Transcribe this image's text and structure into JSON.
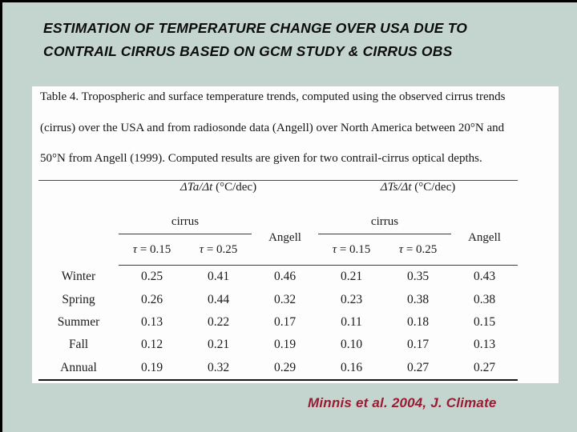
{
  "slide": {
    "title_line1": "ESTIMATION OF TEMPERATURE CHANGE OVER USA DUE TO",
    "title_line2": "CONTRAIL CIRRUS BASED ON GCM STUDY & CIRRUS OBS",
    "citation": "Minnis et al. 2004, J. Climate",
    "colors": {
      "background": "#c4d5d0",
      "panel": "#fdfdfd",
      "citation_red": "#9b1b30",
      "edge_border": "#000000"
    }
  },
  "table": {
    "caption_line1": "Table 4. Tropospheric and surface temperature trends, computed using the observed cirrus trends",
    "caption_line2": "(cirrus) over the USA and from radiosonde data (Angell) over North America between 20°N and",
    "caption_line3": "50°N from Angell (1999). Computed results are given for two contrail-cirrus optical depths.",
    "group_headers": [
      {
        "symbol": "ΔTa/Δt",
        "unit": " (°C/dec)"
      },
      {
        "symbol": "ΔTs/Δt",
        "unit": " (°C/dec)"
      }
    ],
    "cirrus_labels": [
      "cirrus",
      "cirrus"
    ],
    "angell_labels": [
      "Angell",
      "Angell"
    ],
    "tau_headers": [
      {
        "sym": "τ",
        "rest": " = 0.15"
      },
      {
        "sym": "τ",
        "rest": " = 0.25"
      },
      {
        "sym": "τ",
        "rest": " = 0.15"
      },
      {
        "sym": "τ",
        "rest": " = 0.25"
      }
    ],
    "rows": [
      {
        "label": "Winter",
        "values": [
          "0.25",
          "0.41",
          "0.46",
          "0.21",
          "0.35",
          "0.43"
        ]
      },
      {
        "label": "Spring",
        "values": [
          "0.26",
          "0.44",
          "0.32",
          "0.23",
          "0.38",
          "0.38"
        ]
      },
      {
        "label": "Summer",
        "values": [
          "0.13",
          "0.22",
          "0.17",
          "0.11",
          "0.18",
          "0.15"
        ]
      },
      {
        "label": "Fall",
        "values": [
          "0.12",
          "0.21",
          "0.19",
          "0.10",
          "0.17",
          "0.13"
        ]
      },
      {
        "label": "Annual",
        "values": [
          "0.19",
          "0.32",
          "0.29",
          "0.16",
          "0.27",
          "0.27"
        ]
      }
    ]
  }
}
